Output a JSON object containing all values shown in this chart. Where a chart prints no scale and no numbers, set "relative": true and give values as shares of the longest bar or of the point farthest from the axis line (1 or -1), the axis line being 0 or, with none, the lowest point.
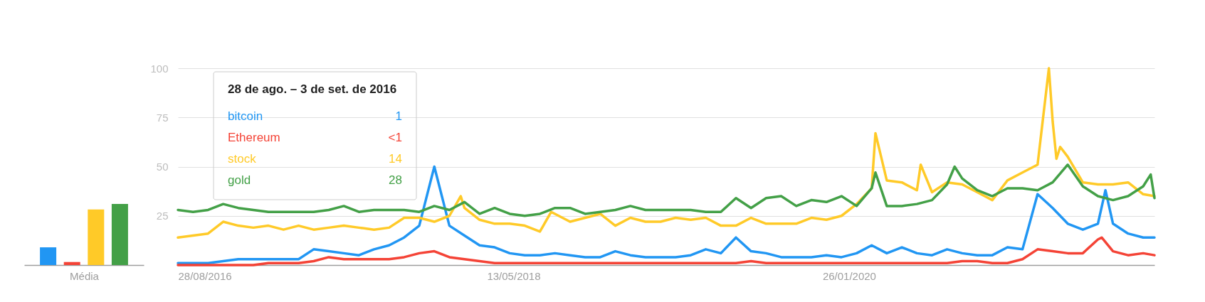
{
  "chart_data": [
    {
      "type": "bar",
      "relative": true,
      "xlabel": "Média",
      "categories": [
        null,
        null,
        null,
        null
      ],
      "values": [
        0.29,
        0.05,
        0.91,
        1
      ],
      "colors": [
        "#2196f3",
        "#f44336",
        "#ffca28",
        "#43a047"
      ]
    },
    {
      "type": "line",
      "grid": "y",
      "ylim": [
        0,
        100
      ],
      "yticks": [
        25,
        50,
        75,
        100
      ],
      "xlim": [
        "2016-08-28",
        "2021-08-15"
      ],
      "xticks": [
        {
          "value": "2016-08-28",
          "label": "28/08/2016"
        },
        {
          "value": "2018-05-13",
          "label": "13/05/2018"
        },
        {
          "value": "2020-01-26",
          "label": "26/01/2020"
        }
      ],
      "annotations": [
        "28 de ago. – 3 de set. de 2016",
        "1",
        "<1",
        "14",
        "28"
      ],
      "series": [
        {
          "name": "bitcoin",
          "color": "#2196f3",
          "x": [
            "2016-08-28",
            "2016-09-25",
            "2016-10-23",
            "2016-11-20",
            "2016-12-18",
            "2017-01-15",
            "2017-02-12",
            "2017-03-12",
            "2017-04-09",
            "2017-05-07",
            "2017-06-04",
            "2017-07-02",
            "2017-07-30",
            "2017-08-27",
            "2017-09-24",
            "2017-10-22",
            "2017-11-19",
            "2017-12-17",
            "2018-01-14",
            "2018-02-11",
            "2018-03-11",
            "2018-04-08",
            "2018-05-06",
            "2018-06-03",
            "2018-07-01",
            "2018-07-29",
            "2018-08-26",
            "2018-09-23",
            "2018-10-21",
            "2018-11-18",
            "2018-12-16",
            "2019-01-13",
            "2019-02-10",
            "2019-03-10",
            "2019-04-07",
            "2019-05-05",
            "2019-06-02",
            "2019-06-30",
            "2019-07-28",
            "2019-08-25",
            "2019-09-22",
            "2019-10-20",
            "2019-11-17",
            "2019-12-15",
            "2020-01-12",
            "2020-02-09",
            "2020-03-08",
            "2020-04-05",
            "2020-05-03",
            "2020-05-31",
            "2020-06-28",
            "2020-07-26",
            "2020-08-23",
            "2020-09-20",
            "2020-10-18",
            "2020-11-15",
            "2020-12-13",
            "2021-01-10",
            "2021-02-07",
            "2021-03-07",
            "2021-04-04",
            "2021-05-02",
            "2021-05-16",
            "2021-05-30",
            "2021-06-27",
            "2021-07-25",
            "2021-08-15"
          ],
          "values": [
            1,
            1,
            1,
            2,
            3,
            3,
            3,
            3,
            3,
            8,
            7,
            6,
            5,
            8,
            10,
            14,
            20,
            50,
            20,
            15,
            10,
            9,
            6,
            5,
            5,
            6,
            5,
            4,
            4,
            7,
            5,
            4,
            4,
            4,
            5,
            8,
            6,
            14,
            7,
            6,
            4,
            4,
            4,
            5,
            4,
            6,
            10,
            6,
            9,
            6,
            5,
            8,
            6,
            5,
            5,
            9,
            8,
            36,
            29,
            21,
            18,
            21,
            38,
            21,
            16,
            14,
            14
          ]
        },
        {
          "name": "Ethereum",
          "color": "#f44336",
          "x": [
            "2016-08-28",
            "2016-09-25",
            "2016-10-23",
            "2016-11-20",
            "2016-12-18",
            "2017-01-15",
            "2017-02-12",
            "2017-03-12",
            "2017-04-09",
            "2017-05-07",
            "2017-06-04",
            "2017-07-02",
            "2017-07-30",
            "2017-08-27",
            "2017-09-24",
            "2017-10-22",
            "2017-11-19",
            "2017-12-17",
            "2018-01-14",
            "2018-02-11",
            "2018-03-11",
            "2018-04-08",
            "2018-05-06",
            "2018-06-03",
            "2018-07-01",
            "2018-07-29",
            "2018-08-26",
            "2018-09-23",
            "2018-10-21",
            "2018-11-18",
            "2018-12-16",
            "2019-01-13",
            "2019-02-10",
            "2019-03-10",
            "2019-04-07",
            "2019-05-05",
            "2019-06-02",
            "2019-06-30",
            "2019-07-28",
            "2019-08-25",
            "2019-09-22",
            "2019-10-20",
            "2019-11-17",
            "2019-12-15",
            "2020-01-12",
            "2020-02-09",
            "2020-03-08",
            "2020-04-05",
            "2020-05-03",
            "2020-05-31",
            "2020-06-28",
            "2020-07-26",
            "2020-08-23",
            "2020-09-20",
            "2020-10-18",
            "2020-11-15",
            "2020-12-13",
            "2021-01-10",
            "2021-02-07",
            "2021-03-07",
            "2021-04-04",
            "2021-05-02",
            "2021-05-09",
            "2021-05-30",
            "2021-06-27",
            "2021-07-25",
            "2021-08-15"
          ],
          "values": [
            0,
            0,
            0,
            0,
            0,
            0,
            1,
            1,
            1,
            2,
            4,
            3,
            3,
            3,
            3,
            4,
            6,
            7,
            4,
            3,
            2,
            1,
            1,
            1,
            1,
            1,
            1,
            1,
            1,
            1,
            1,
            1,
            1,
            1,
            1,
            1,
            1,
            1,
            2,
            1,
            1,
            1,
            1,
            1,
            1,
            1,
            1,
            1,
            1,
            1,
            1,
            1,
            2,
            2,
            1,
            1,
            3,
            8,
            7,
            6,
            6,
            13,
            14,
            7,
            5,
            6,
            5
          ]
        },
        {
          "name": "stock",
          "color": "#ffca28",
          "x": [
            "2016-08-28",
            "2016-09-25",
            "2016-10-23",
            "2016-11-20",
            "2016-12-18",
            "2017-01-15",
            "2017-02-12",
            "2017-03-12",
            "2017-04-09",
            "2017-05-07",
            "2017-06-04",
            "2017-07-02",
            "2017-07-30",
            "2017-08-27",
            "2017-09-24",
            "2017-10-22",
            "2017-11-19",
            "2017-12-17",
            "2018-01-14",
            "2018-02-04",
            "2018-02-11",
            "2018-03-11",
            "2018-04-08",
            "2018-05-06",
            "2018-06-03",
            "2018-07-01",
            "2018-07-22",
            "2018-07-29",
            "2018-08-26",
            "2018-09-23",
            "2018-10-21",
            "2018-11-18",
            "2018-12-16",
            "2019-01-13",
            "2019-02-10",
            "2019-03-10",
            "2019-04-07",
            "2019-05-05",
            "2019-06-02",
            "2019-06-30",
            "2019-07-28",
            "2019-08-25",
            "2019-09-22",
            "2019-10-20",
            "2019-11-17",
            "2019-12-15",
            "2020-01-12",
            "2020-02-09",
            "2020-03-08",
            "2020-03-15",
            "2020-04-05",
            "2020-05-03",
            "2020-05-31",
            "2020-06-07",
            "2020-06-28",
            "2020-07-26",
            "2020-08-23",
            "2020-09-20",
            "2020-10-18",
            "2020-11-15",
            "2020-12-13",
            "2021-01-10",
            "2021-01-31",
            "2021-02-07",
            "2021-02-14",
            "2021-02-21",
            "2021-03-07",
            "2021-04-04",
            "2021-05-02",
            "2021-05-30",
            "2021-06-27",
            "2021-07-25",
            "2021-08-15"
          ],
          "values": [
            14,
            15,
            16,
            22,
            20,
            19,
            20,
            18,
            20,
            18,
            19,
            20,
            19,
            18,
            19,
            24,
            24,
            22,
            25,
            35,
            29,
            23,
            21,
            21,
            20,
            17,
            27,
            26,
            22,
            24,
            26,
            20,
            24,
            22,
            22,
            24,
            23,
            24,
            20,
            20,
            24,
            21,
            21,
            21,
            24,
            23,
            25,
            31,
            39,
            67,
            43,
            42,
            38,
            51,
            37,
            42,
            41,
            37,
            33,
            43,
            47,
            51,
            100,
            73,
            54,
            60,
            55,
            42,
            41,
            41,
            42,
            36,
            35
          ]
        },
        {
          "name": "gold",
          "color": "#43a047",
          "x": [
            "2016-08-28",
            "2016-09-25",
            "2016-10-23",
            "2016-11-20",
            "2016-12-18",
            "2017-01-15",
            "2017-02-12",
            "2017-03-12",
            "2017-04-09",
            "2017-05-07",
            "2017-06-04",
            "2017-07-02",
            "2017-07-30",
            "2017-08-27",
            "2017-09-24",
            "2017-10-22",
            "2017-11-19",
            "2017-12-17",
            "2018-01-14",
            "2018-02-11",
            "2018-03-11",
            "2018-04-08",
            "2018-05-06",
            "2018-06-03",
            "2018-07-01",
            "2018-07-29",
            "2018-08-26",
            "2018-09-23",
            "2018-10-21",
            "2018-11-18",
            "2018-12-16",
            "2019-01-13",
            "2019-02-10",
            "2019-03-10",
            "2019-04-07",
            "2019-05-05",
            "2019-06-02",
            "2019-06-30",
            "2019-07-28",
            "2019-08-25",
            "2019-09-22",
            "2019-10-20",
            "2019-11-17",
            "2019-12-15",
            "2020-01-12",
            "2020-02-09",
            "2020-03-08",
            "2020-03-15",
            "2020-04-05",
            "2020-05-03",
            "2020-05-31",
            "2020-06-28",
            "2020-07-26",
            "2020-08-09",
            "2020-08-23",
            "2020-09-20",
            "2020-10-18",
            "2020-11-15",
            "2020-12-13",
            "2021-01-10",
            "2021-02-07",
            "2021-03-07",
            "2021-04-04",
            "2021-05-02",
            "2021-05-30",
            "2021-06-27",
            "2021-07-25",
            "2021-08-08",
            "2021-08-15"
          ],
          "values": [
            28,
            27,
            28,
            31,
            29,
            28,
            27,
            27,
            27,
            27,
            28,
            30,
            27,
            28,
            28,
            28,
            27,
            30,
            28,
            32,
            26,
            29,
            26,
            25,
            26,
            29,
            29,
            26,
            27,
            28,
            30,
            28,
            28,
            28,
            28,
            27,
            27,
            34,
            29,
            34,
            35,
            30,
            33,
            32,
            35,
            30,
            39,
            47,
            30,
            30,
            31,
            33,
            41,
            50,
            44,
            38,
            35,
            39,
            39,
            38,
            42,
            51,
            40,
            35,
            33,
            35,
            40,
            46,
            34
          ]
        }
      ]
    }
  ]
}
